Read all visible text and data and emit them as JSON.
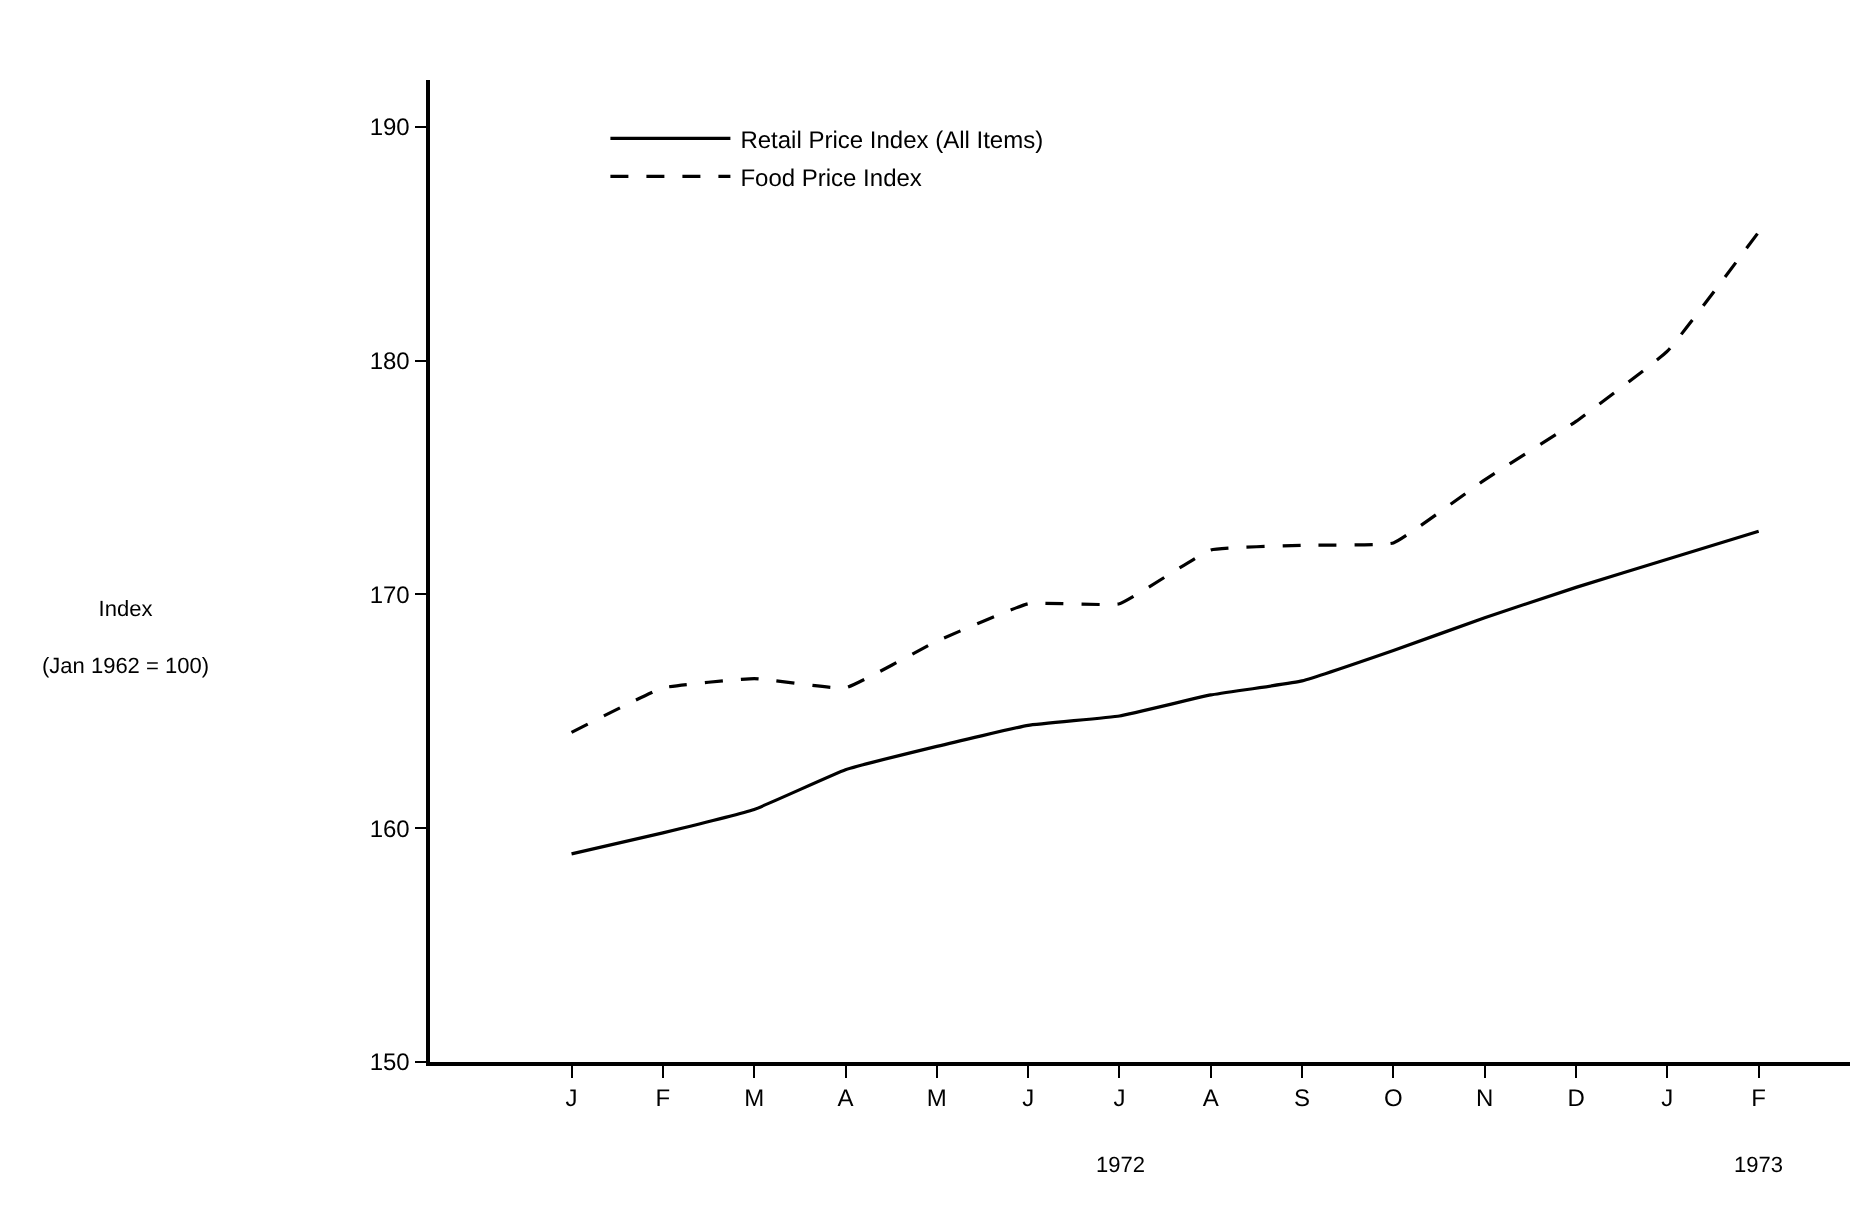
{
  "chart_data": {
    "type": "line",
    "categories": [
      "J",
      "F",
      "M",
      "A",
      "M",
      "J",
      "J",
      "A",
      "S",
      "O",
      "N",
      "D",
      "J",
      "F"
    ],
    "series": [
      {
        "name": "Retail Price Index (All Items)",
        "color": "#000000",
        "line_style": "solid",
        "values": [
          158.9,
          159.8,
          160.8,
          162.5,
          163.5,
          164.4,
          164.8,
          165.7,
          166.3,
          167.6,
          169.0,
          170.3,
          171.5,
          172.7
        ]
      },
      {
        "name": "Food Price Index",
        "color": "#000000",
        "line_style": "dashed",
        "values": [
          164.1,
          166.0,
          166.4,
          166.0,
          168.0,
          169.6,
          169.6,
          171.9,
          172.1,
          172.2,
          174.9,
          177.4,
          180.4,
          185.5
        ]
      }
    ],
    "ylabel": "Index\n(Jan 1962 = 100)",
    "ylim": [
      150,
      192
    ],
    "yticks": [
      150,
      160,
      170,
      180,
      190
    ],
    "annotations": [
      "1972",
      "1973"
    ],
    "legend": "top left",
    "marker": "none"
  }
}
